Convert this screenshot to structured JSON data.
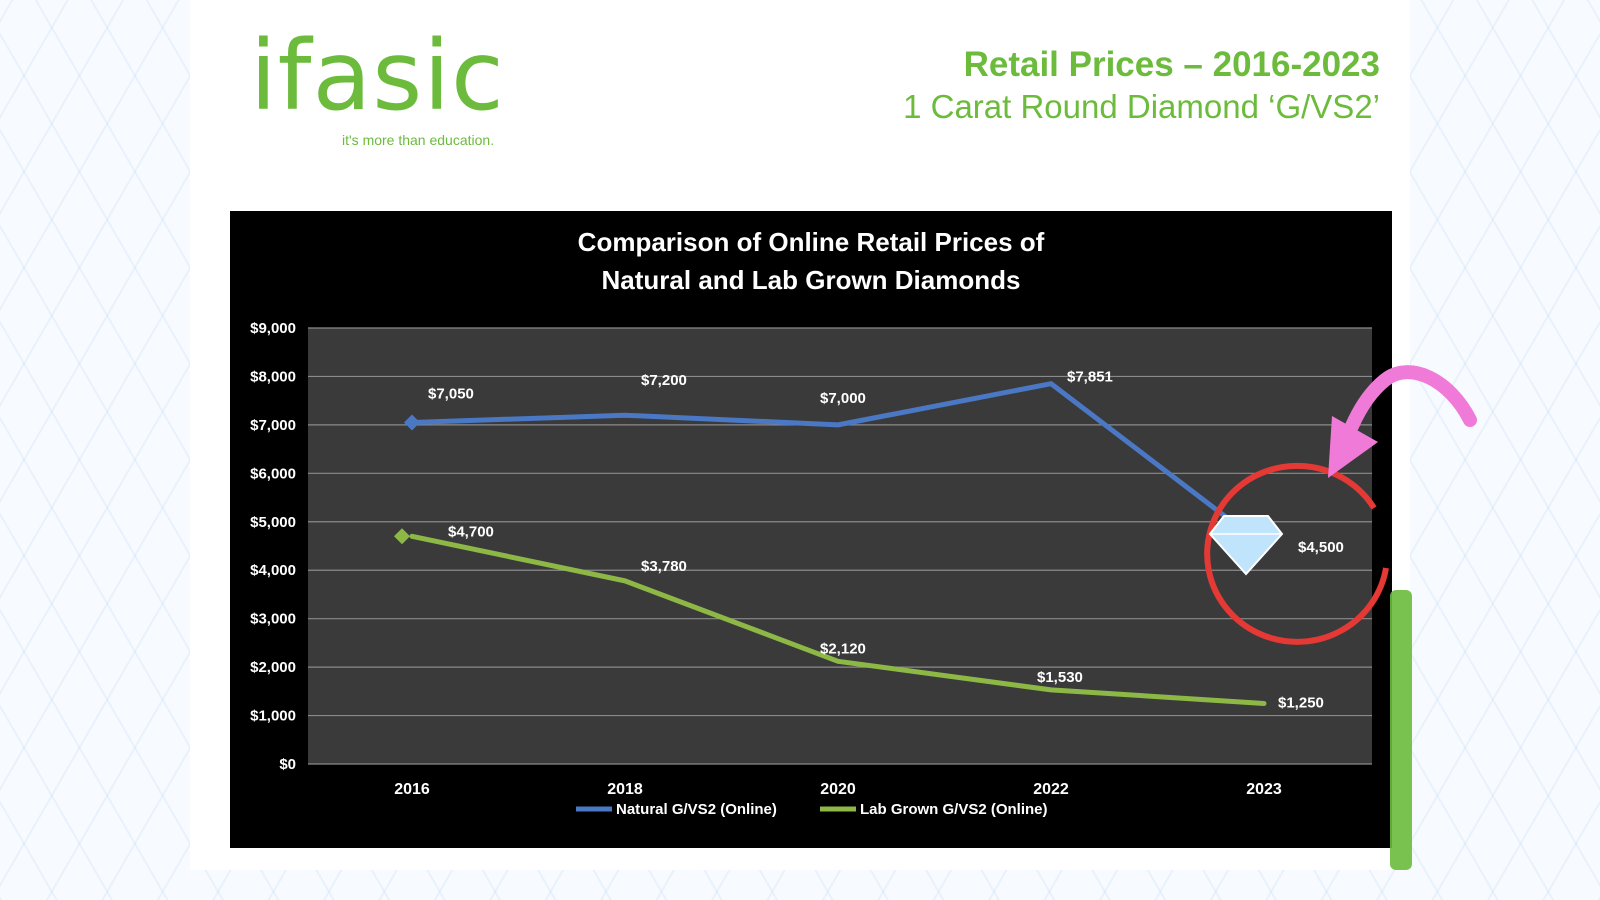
{
  "logo": {
    "word": "ifasic",
    "tagline": "it's more than education."
  },
  "headline": {
    "title": "Retail Prices – 2016-2023",
    "subtitle": "1 Carat Round Diamond ‘G/VS2’"
  },
  "colors": {
    "brand_green": "#6cbb3c",
    "natural_line": "#4a78c4",
    "lab_line": "#8db846",
    "plot_bg": "#3a3a3a",
    "highlight_circle": "#e53935",
    "arrow": "#f07ad8",
    "diamond": "#bfe4fb"
  },
  "chart_data": {
    "type": "line",
    "title_lines": [
      "Comparison of Online Retail Prices of",
      "Natural and Lab Grown Diamonds"
    ],
    "categories": [
      "2016",
      "2018",
      "2020",
      "2022",
      "2023"
    ],
    "y_ticks": [
      "$0",
      "$1,000",
      "$2,000",
      "$3,000",
      "$4,000",
      "$5,000",
      "$6,000",
      "$7,000",
      "$8,000",
      "$9,000"
    ],
    "ylim": [
      0,
      9000
    ],
    "grid": true,
    "legend_position": "bottom",
    "series": [
      {
        "name": "Natural G/VS2 (Online)",
        "values": [
          7050,
          7200,
          7000,
          7851,
          4500
        ],
        "labels": [
          "$7,050",
          "$7,200",
          "$7,000",
          "$7,851",
          "$4,500"
        ],
        "color": "#4a78c4"
      },
      {
        "name": "Lab Grown G/VS2 (Online)",
        "values": [
          4700,
          3780,
          2120,
          1530,
          1250
        ],
        "labels": [
          "$4,700",
          "$3,780",
          "$2,120",
          "$1,530",
          "$1,250"
        ],
        "color": "#8db846"
      }
    ]
  }
}
